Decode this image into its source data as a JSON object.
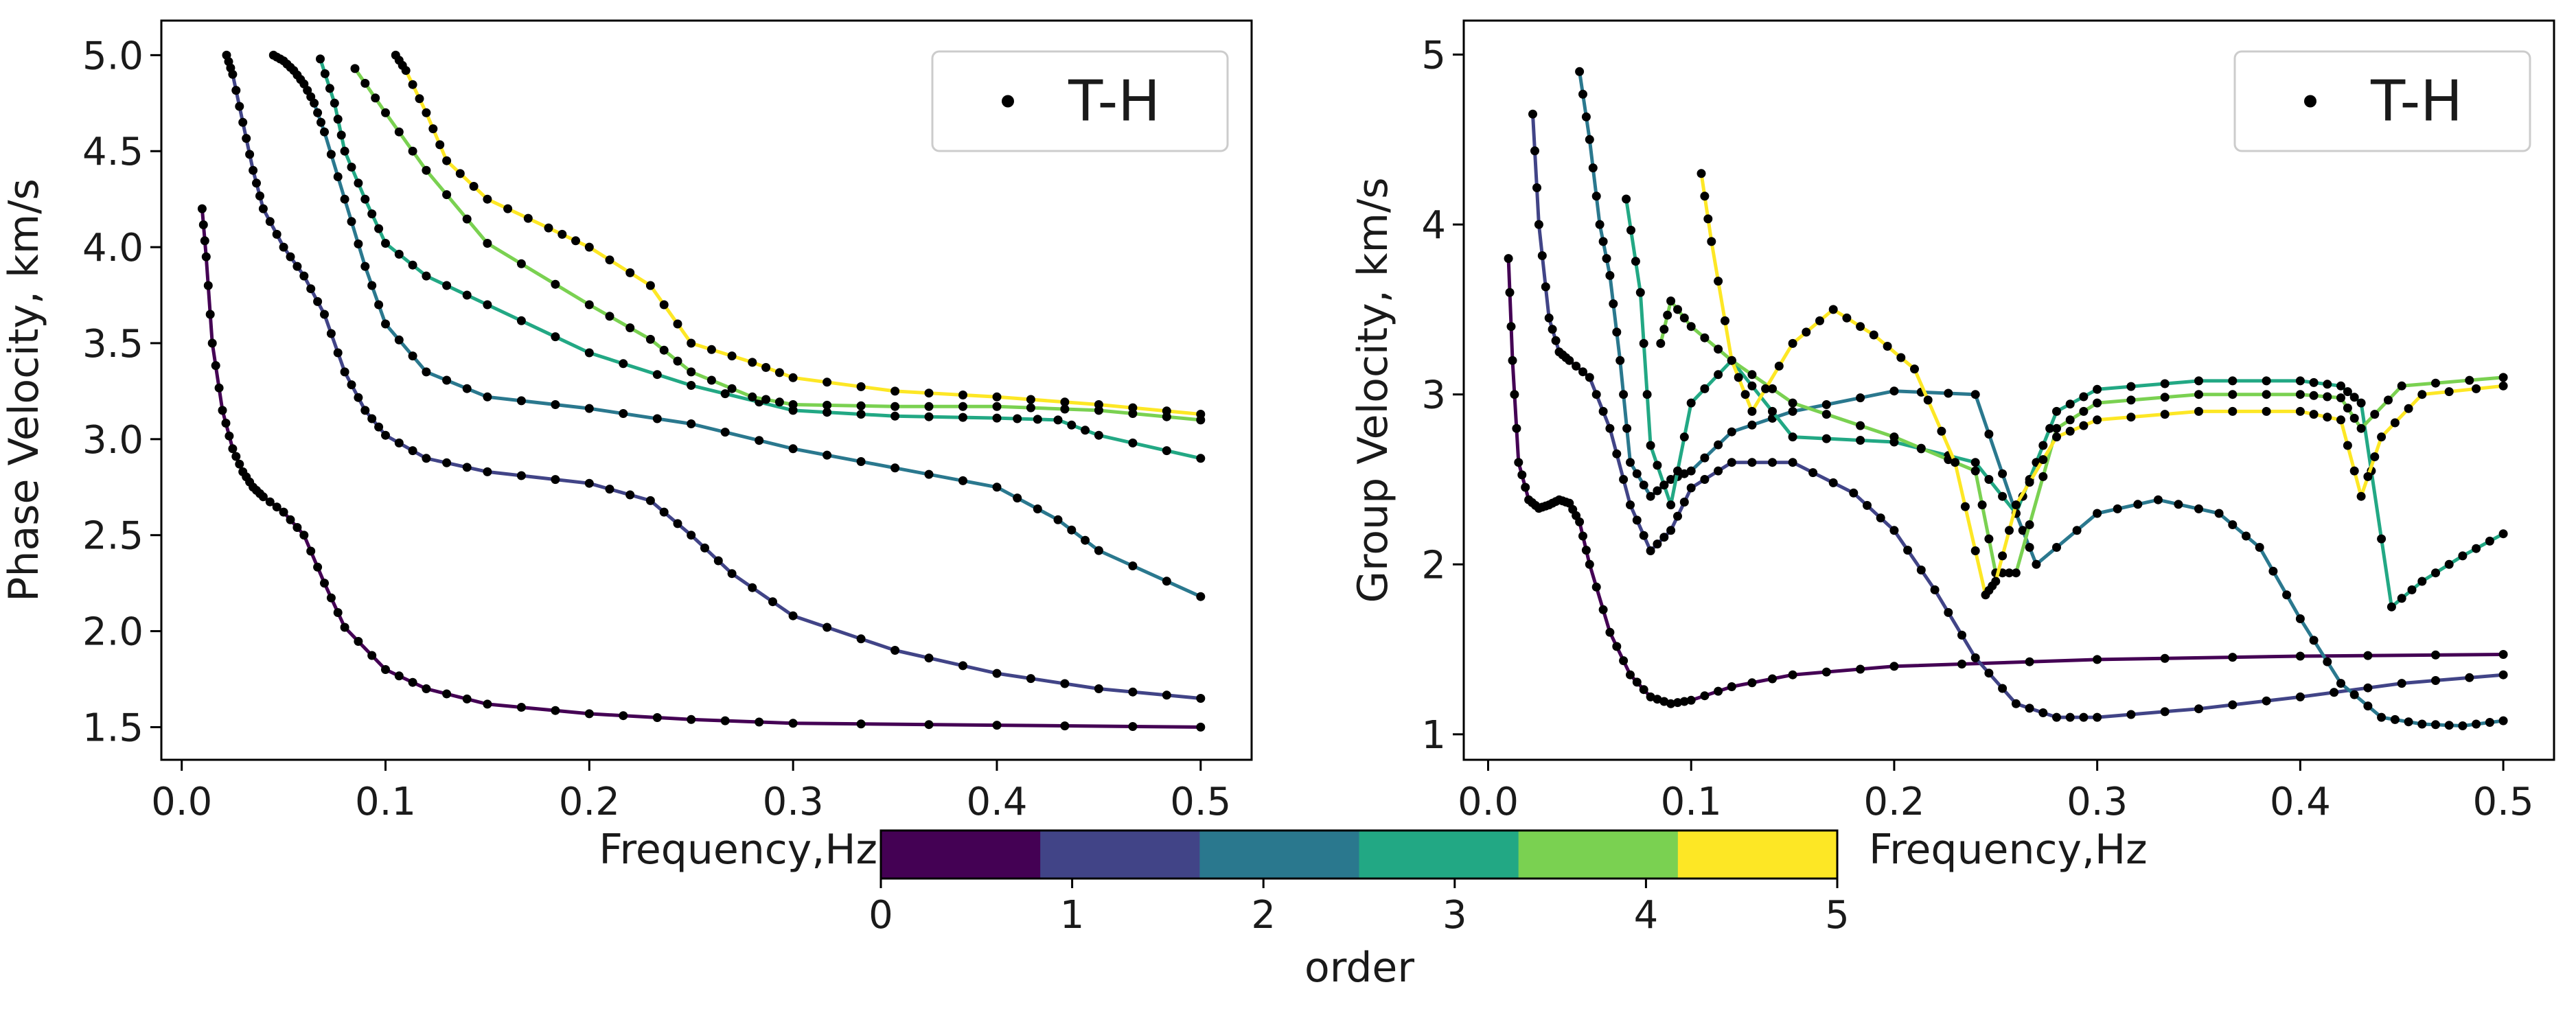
{
  "colors": [
    "#440154",
    "#414487",
    "#2a788e",
    "#22a884",
    "#7ad151",
    "#fde725"
  ],
  "chart_data": [
    {
      "type": "line",
      "xlabel": "Frequency,Hz",
      "ylabel": "Phase Velocity, km/s",
      "xlim": [
        -0.01,
        0.525
      ],
      "ylim": [
        1.33,
        5.18
      ],
      "xticks": [
        "0.0",
        "0.1",
        "0.2",
        "0.3",
        "0.4",
        "0.5"
      ],
      "xtick_values": [
        0,
        0.1,
        0.2,
        0.3,
        0.4,
        0.5
      ],
      "yticks": [
        "1.5",
        "2.0",
        "2.5",
        "3.0",
        "3.5",
        "4.0",
        "4.5",
        "5.0"
      ],
      "ytick_values": [
        1.5,
        2.0,
        2.5,
        3.0,
        3.5,
        4.0,
        4.5,
        5.0
      ],
      "legend": {
        "label": "T-H",
        "placement": "top-right"
      },
      "series": [
        {
          "order": 0,
          "x": [
            0.01,
            0.012,
            0.015,
            0.02,
            0.025,
            0.03,
            0.035,
            0.04,
            0.05,
            0.06,
            0.07,
            0.08,
            0.1,
            0.12,
            0.15,
            0.2,
            0.25,
            0.3,
            0.4,
            0.5
          ],
          "y": [
            4.2,
            3.95,
            3.5,
            3.15,
            2.95,
            2.83,
            2.75,
            2.7,
            2.62,
            2.5,
            2.25,
            2.02,
            1.8,
            1.7,
            1.62,
            1.57,
            1.54,
            1.52,
            1.51,
            1.5
          ]
        },
        {
          "order": 1,
          "x": [
            0.022,
            0.025,
            0.03,
            0.035,
            0.04,
            0.05,
            0.06,
            0.07,
            0.08,
            0.09,
            0.1,
            0.12,
            0.15,
            0.2,
            0.23,
            0.25,
            0.27,
            0.3,
            0.35,
            0.4,
            0.45,
            0.5
          ],
          "y": [
            5.0,
            4.9,
            4.65,
            4.4,
            4.2,
            4.0,
            3.85,
            3.65,
            3.35,
            3.15,
            3.02,
            2.9,
            2.83,
            2.77,
            2.68,
            2.5,
            2.3,
            2.08,
            1.9,
            1.78,
            1.7,
            1.65
          ]
        },
        {
          "order": 2,
          "x": [
            0.045,
            0.05,
            0.055,
            0.06,
            0.065,
            0.07,
            0.08,
            0.09,
            0.1,
            0.12,
            0.15,
            0.2,
            0.25,
            0.3,
            0.35,
            0.4,
            0.43,
            0.45,
            0.5
          ],
          "y": [
            5.0,
            4.97,
            4.92,
            4.85,
            4.75,
            4.6,
            4.25,
            3.9,
            3.6,
            3.35,
            3.22,
            3.16,
            3.08,
            2.95,
            2.85,
            2.75,
            2.58,
            2.42,
            2.18
          ]
        },
        {
          "order": 3,
          "x": [
            0.068,
            0.075,
            0.08,
            0.09,
            0.1,
            0.12,
            0.15,
            0.2,
            0.25,
            0.3,
            0.35,
            0.4,
            0.43,
            0.45,
            0.5
          ],
          "y": [
            4.98,
            4.75,
            4.5,
            4.25,
            4.02,
            3.85,
            3.7,
            3.45,
            3.28,
            3.15,
            3.12,
            3.11,
            3.1,
            3.02,
            2.9
          ]
        },
        {
          "order": 4,
          "x": [
            0.085,
            0.1,
            0.12,
            0.15,
            0.2,
            0.23,
            0.25,
            0.28,
            0.3,
            0.35,
            0.4,
            0.45,
            0.5
          ],
          "y": [
            4.93,
            4.7,
            4.4,
            4.02,
            3.7,
            3.52,
            3.35,
            3.22,
            3.18,
            3.17,
            3.17,
            3.15,
            3.1
          ]
        },
        {
          "order": 5,
          "x": [
            0.105,
            0.11,
            0.12,
            0.13,
            0.15,
            0.18,
            0.2,
            0.23,
            0.25,
            0.28,
            0.3,
            0.35,
            0.4,
            0.45,
            0.5
          ],
          "y": [
            5.0,
            4.92,
            4.7,
            4.45,
            4.25,
            4.1,
            4.0,
            3.8,
            3.5,
            3.4,
            3.32,
            3.25,
            3.22,
            3.18,
            3.13
          ]
        }
      ]
    },
    {
      "type": "line",
      "xlabel": "Frequency,Hz",
      "ylabel": "Group Velocity, km/s",
      "xlim": [
        -0.012,
        0.525
      ],
      "ylim": [
        0.85,
        5.2
      ],
      "xticks": [
        "0.0",
        "0.1",
        "0.2",
        "0.3",
        "0.4",
        "0.5"
      ],
      "xtick_values": [
        0,
        0.1,
        0.2,
        0.3,
        0.4,
        0.5
      ],
      "yticks": [
        "1",
        "2",
        "3",
        "4",
        "5"
      ],
      "ytick_values": [
        1,
        2,
        3,
        4,
        5
      ],
      "legend": {
        "label": "T-H",
        "placement": "top-right"
      },
      "series": [
        {
          "order": 0,
          "x": [
            0.01,
            0.012,
            0.015,
            0.02,
            0.025,
            0.03,
            0.035,
            0.04,
            0.045,
            0.05,
            0.06,
            0.07,
            0.08,
            0.09,
            0.1,
            0.12,
            0.15,
            0.2,
            0.3,
            0.4,
            0.5
          ],
          "y": [
            3.8,
            3.2,
            2.6,
            2.38,
            2.33,
            2.35,
            2.38,
            2.36,
            2.25,
            2.0,
            1.6,
            1.35,
            1.22,
            1.18,
            1.2,
            1.28,
            1.35,
            1.4,
            1.44,
            1.46,
            1.47
          ]
        },
        {
          "order": 1,
          "x": [
            0.022,
            0.025,
            0.03,
            0.035,
            0.04,
            0.05,
            0.06,
            0.07,
            0.08,
            0.09,
            0.1,
            0.12,
            0.15,
            0.18,
            0.2,
            0.22,
            0.24,
            0.26,
            0.28,
            0.3,
            0.35,
            0.4,
            0.45,
            0.5
          ],
          "y": [
            4.65,
            4.0,
            3.45,
            3.25,
            3.2,
            3.1,
            2.8,
            2.35,
            2.08,
            2.2,
            2.45,
            2.6,
            2.6,
            2.42,
            2.2,
            1.85,
            1.45,
            1.18,
            1.1,
            1.1,
            1.15,
            1.22,
            1.3,
            1.35
          ]
        },
        {
          "order": 2,
          "x": [
            0.045,
            0.05,
            0.055,
            0.06,
            0.065,
            0.07,
            0.08,
            0.09,
            0.1,
            0.12,
            0.15,
            0.2,
            0.24,
            0.26,
            0.27,
            0.3,
            0.33,
            0.36,
            0.38,
            0.4,
            0.42,
            0.44,
            0.46,
            0.48,
            0.5
          ],
          "y": [
            4.9,
            4.5,
            4.0,
            3.7,
            3.2,
            2.6,
            2.4,
            2.5,
            2.55,
            2.78,
            2.9,
            3.02,
            3.0,
            2.3,
            2.0,
            2.3,
            2.38,
            2.3,
            2.1,
            1.68,
            1.3,
            1.1,
            1.06,
            1.05,
            1.08
          ]
        },
        {
          "order": 3,
          "x": [
            0.068,
            0.075,
            0.08,
            0.09,
            0.1,
            0.12,
            0.15,
            0.2,
            0.24,
            0.26,
            0.27,
            0.28,
            0.3,
            0.35,
            0.4,
            0.42,
            0.43,
            0.445,
            0.46,
            0.48,
            0.5
          ],
          "y": [
            4.15,
            3.6,
            2.7,
            2.35,
            2.95,
            3.2,
            2.75,
            2.72,
            2.6,
            2.3,
            2.6,
            2.9,
            3.03,
            3.08,
            3.08,
            3.05,
            2.95,
            1.75,
            1.9,
            2.05,
            2.18
          ]
        },
        {
          "order": 4,
          "x": [
            0.085,
            0.09,
            0.1,
            0.12,
            0.15,
            0.2,
            0.24,
            0.25,
            0.26,
            0.28,
            0.3,
            0.35,
            0.4,
            0.42,
            0.43,
            0.45,
            0.5
          ],
          "y": [
            3.3,
            3.55,
            3.4,
            3.2,
            2.95,
            2.75,
            2.55,
            1.95,
            1.95,
            2.8,
            2.95,
            3.0,
            3.0,
            2.98,
            2.8,
            3.05,
            3.1
          ]
        },
        {
          "order": 5,
          "x": [
            0.105,
            0.11,
            0.12,
            0.13,
            0.15,
            0.17,
            0.19,
            0.21,
            0.23,
            0.245,
            0.25,
            0.26,
            0.28,
            0.3,
            0.35,
            0.4,
            0.42,
            0.43,
            0.44,
            0.46,
            0.5
          ],
          "y": [
            4.3,
            3.9,
            3.2,
            2.9,
            3.3,
            3.5,
            3.35,
            3.15,
            2.6,
            1.82,
            1.9,
            2.35,
            2.75,
            2.85,
            2.9,
            2.9,
            2.85,
            2.4,
            2.75,
            3.0,
            3.05
          ]
        }
      ]
    }
  ],
  "colorbar": {
    "label": "order",
    "left_text": "Frequency,Hz",
    "right_text": "Frequency,Hz",
    "range": [
      0,
      5
    ],
    "ticks": [
      "0",
      "1",
      "2",
      "3",
      "4",
      "5"
    ],
    "tick_values": [
      0,
      1,
      2,
      3,
      4,
      5
    ]
  }
}
